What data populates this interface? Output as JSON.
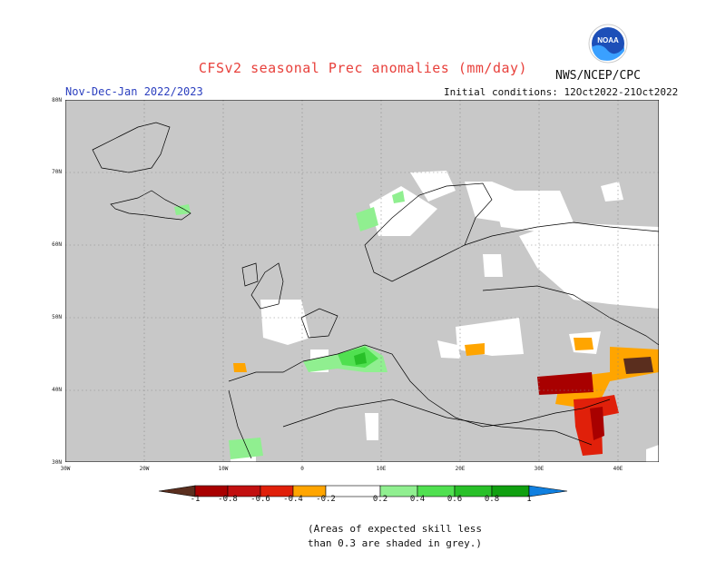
{
  "header": {
    "title": "CFSv2 seasonal Prec anomalies (mm/day)",
    "agency": "NWS/NCEP/CPC",
    "logo_text": "NOAA",
    "period": "Nov-Dec-Jan 2022/2023",
    "initial_conditions": "Initial conditions: 12Oct2022-21Oct2022"
  },
  "map": {
    "lat_labels": [
      "80N",
      "70N",
      "60N",
      "50N",
      "40N",
      "30N"
    ],
    "lon_labels": [
      "30W",
      "20W",
      "10W",
      "0",
      "10E",
      "20E",
      "30E",
      "40E"
    ],
    "extent": {
      "lon_min": -30,
      "lon_max": 45,
      "lat_min": 30,
      "lat_max": 80
    },
    "colors": {
      "ocean_land": "#c8c8c8",
      "no_signal": "#ffffff",
      "coast": "#000000"
    }
  },
  "colorbar": {
    "labels": [
      "-1",
      "-0.8",
      "-0.6",
      "-0.4",
      "-0.2",
      "0.2",
      "0.4",
      "0.6",
      "0.8",
      "1"
    ],
    "colors": [
      "#5a2e1e",
      "#a80000",
      "#e0200a",
      "#ff5a00",
      "#ffa500",
      "#ffffff",
      "#90ef90",
      "#50e050",
      "#28c028",
      "#10a010",
      "#1080e0"
    ]
  },
  "note": {
    "line1": "(Areas of expected skill less",
    "line2": "than 0.3 are shaded in grey.)"
  }
}
